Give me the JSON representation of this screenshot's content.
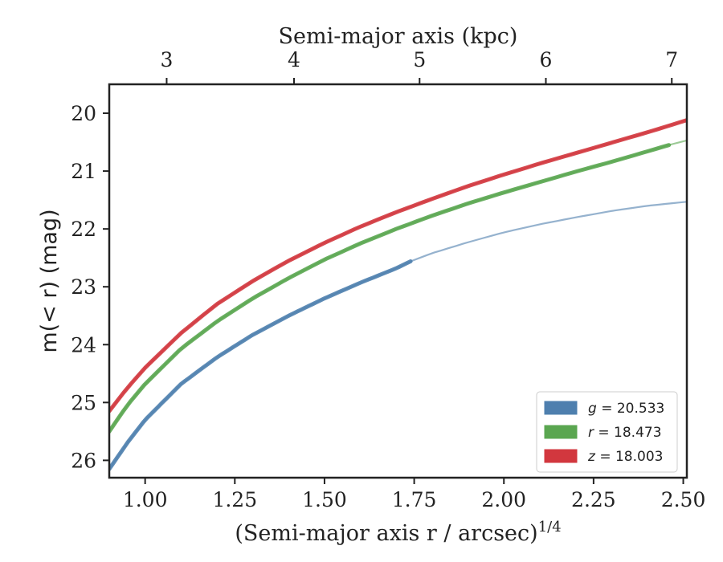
{
  "chart_data": {
    "type": "line",
    "xlabel_bottom": "(Semi-major axis r / arcsec)",
    "xlabel_bottom_exponent": "1/4",
    "xlabel_top": "Semi-major axis (kpc)",
    "ylabel": "m(< r) (mag)",
    "xlim": [
      0.9,
      2.51
    ],
    "ylim": [
      26.3,
      19.5
    ],
    "y_inverted": true,
    "x_ticks_bottom": [
      "1.00",
      "1.25",
      "1.50",
      "1.75",
      "2.00",
      "2.25",
      "2.50"
    ],
    "x_tick_values_bottom": [
      1.0,
      1.25,
      1.5,
      1.75,
      2.0,
      2.25,
      2.5
    ],
    "x_ticks_top": [
      "3",
      "4",
      "5",
      "6",
      "7"
    ],
    "x_tick_values_top": [
      1.06,
      1.415,
      1.765,
      2.117,
      2.468
    ],
    "y_ticks": [
      "20",
      "21",
      "22",
      "23",
      "24",
      "25",
      "26"
    ],
    "y_tick_values": [
      20,
      21,
      22,
      23,
      24,
      25,
      26
    ],
    "grid": false,
    "legend_position": "bottom-right",
    "legend": [
      {
        "label": "g = 20.533",
        "var": "g",
        "value": "20.533",
        "color": "#4e7fae"
      },
      {
        "label": "r = 18.473",
        "var": "r",
        "value": "18.473",
        "color": "#5aa650"
      },
      {
        "label": "z = 18.003",
        "var": "z",
        "value": "18.003",
        "color": "#d2373e"
      }
    ],
    "series": [
      {
        "name": "g",
        "color": "#4e7fae",
        "data_x_end": 1.74,
        "model_x": [
          0.9,
          0.95,
          1.0,
          1.1,
          1.2,
          1.3,
          1.4,
          1.5,
          1.6,
          1.7,
          1.74,
          1.8,
          1.9,
          2.0,
          2.1,
          2.2,
          2.3,
          2.4,
          2.51
        ],
        "model_y": [
          26.15,
          25.7,
          25.3,
          24.68,
          24.22,
          23.83,
          23.5,
          23.2,
          22.93,
          22.68,
          22.56,
          22.42,
          22.23,
          22.06,
          21.92,
          21.8,
          21.69,
          21.6,
          21.53
        ]
      },
      {
        "name": "r",
        "color": "#5aa650",
        "data_x_end": 2.46,
        "model_x": [
          0.9,
          0.95,
          1.0,
          1.1,
          1.2,
          1.3,
          1.4,
          1.5,
          1.6,
          1.7,
          1.8,
          1.9,
          2.0,
          2.1,
          2.2,
          2.3,
          2.4,
          2.46,
          2.51
        ],
        "model_y": [
          25.5,
          25.05,
          24.68,
          24.07,
          23.6,
          23.2,
          22.85,
          22.53,
          22.25,
          22.0,
          21.77,
          21.56,
          21.37,
          21.19,
          21.01,
          20.84,
          20.66,
          20.55,
          20.47
        ]
      },
      {
        "name": "z",
        "color": "#d2373e",
        "data_x_end": 2.51,
        "model_x": [
          0.9,
          0.95,
          1.0,
          1.1,
          1.2,
          1.3,
          1.4,
          1.5,
          1.6,
          1.7,
          1.8,
          1.9,
          2.0,
          2.1,
          2.2,
          2.3,
          2.4,
          2.51
        ],
        "model_y": [
          25.15,
          24.75,
          24.4,
          23.8,
          23.3,
          22.9,
          22.55,
          22.24,
          21.96,
          21.71,
          21.48,
          21.26,
          21.06,
          20.87,
          20.69,
          20.51,
          20.33,
          20.12
        ]
      }
    ]
  }
}
